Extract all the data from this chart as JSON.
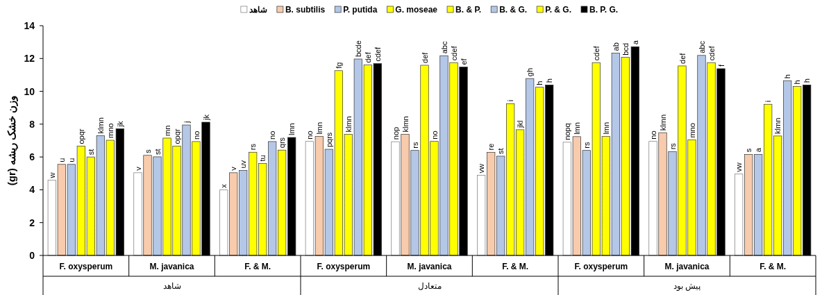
{
  "chart_data": {
    "type": "bar",
    "ylabel": "وزن خشک ریشه (gr)",
    "categories": [
      "F. oxysperum",
      "M. javanica",
      "F. & M.",
      "F. oxysperum",
      "M. javanica",
      "F. & M.",
      "F. oxysperum",
      "M. javanica",
      "F. & M."
    ],
    "annotations": [
      "شاهد",
      "متعادل",
      "پیش بود"
    ],
    "ylim": [
      0,
      14
    ],
    "yticks": [
      0,
      2,
      4,
      6,
      8,
      10,
      12,
      14
    ],
    "legend": "top",
    "grid": false,
    "series": [
      {
        "name": "شاهد",
        "color": "#ffffff",
        "values": [
          4.59,
          5.04,
          3.99,
          6.95,
          6.93,
          4.89,
          6.9,
          6.95,
          4.96
        ],
        "value_labels": [
          "w",
          "v",
          "x",
          "no",
          "nop",
          "vw",
          "nopq",
          "no",
          "vw"
        ]
      },
      {
        "name": "B. subtilis",
        "color": "#f8cbad",
        "values": [
          5.55,
          6.1,
          5.04,
          7.25,
          7.38,
          6.28,
          7.24,
          7.48,
          6.16
        ],
        "value_labels": [
          "u",
          "s",
          "v",
          "lmn",
          "klmn",
          "re",
          "lmn",
          "klmn",
          "s"
        ]
      },
      {
        "name": "P. putida",
        "color": "#b4c7e7",
        "values": [
          5.55,
          6.01,
          5.18,
          6.47,
          6.4,
          6.05,
          6.4,
          6.33,
          6.16
        ],
        "value_labels": [
          "u",
          "st",
          "uv",
          "pqrs",
          "rs",
          "st",
          "rs",
          "rs",
          "a"
        ]
      },
      {
        "name": "G. moseae",
        "color": "#ffff00",
        "values": [
          6.66,
          7.15,
          6.29,
          11.26,
          11.59,
          9.25,
          11.75,
          11.55,
          9.21
        ],
        "value_labels": [
          "opqr",
          "mn",
          "rs",
          "fg",
          "def",
          "i",
          "cdef",
          "def",
          "i"
        ]
      },
      {
        "name": "B. & P.",
        "color": "#ffff00",
        "values": [
          6.0,
          6.66,
          5.6,
          7.38,
          6.95,
          7.66,
          7.25,
          7.04,
          7.28
        ],
        "value_labels": [
          "st",
          "opqr",
          "tu",
          "klmn",
          "no",
          "jkl",
          "lmn",
          "mno",
          "klmn"
        ]
      },
      {
        "name": "B. & G.",
        "color": "#b4c7e7",
        "values": [
          7.3,
          7.95,
          6.94,
          11.97,
          12.17,
          10.78,
          12.33,
          12.19,
          10.65
        ],
        "value_labels": [
          "klmn",
          "j",
          "no",
          "bcde",
          "abc",
          "gh",
          "ab",
          "abc",
          "h"
        ]
      },
      {
        "name": "P. & G.",
        "color": "#ffff00",
        "values": [
          7.02,
          6.94,
          6.42,
          11.61,
          11.75,
          10.25,
          12.07,
          11.75,
          10.3
        ],
        "value_labels": [
          "mno",
          "no",
          "qrs",
          "def",
          "cdef",
          "h",
          "bcd",
          "cdef",
          "h"
        ]
      },
      {
        "name": "B. P. G.",
        "color": "#000000",
        "values": [
          7.72,
          8.12,
          7.19,
          11.69,
          11.48,
          10.39,
          12.72,
          11.38,
          10.39
        ],
        "value_labels": [
          "jk",
          "jk",
          "lmn",
          "cdef",
          "ef",
          "h",
          "a",
          "f",
          "h"
        ]
      }
    ]
  }
}
